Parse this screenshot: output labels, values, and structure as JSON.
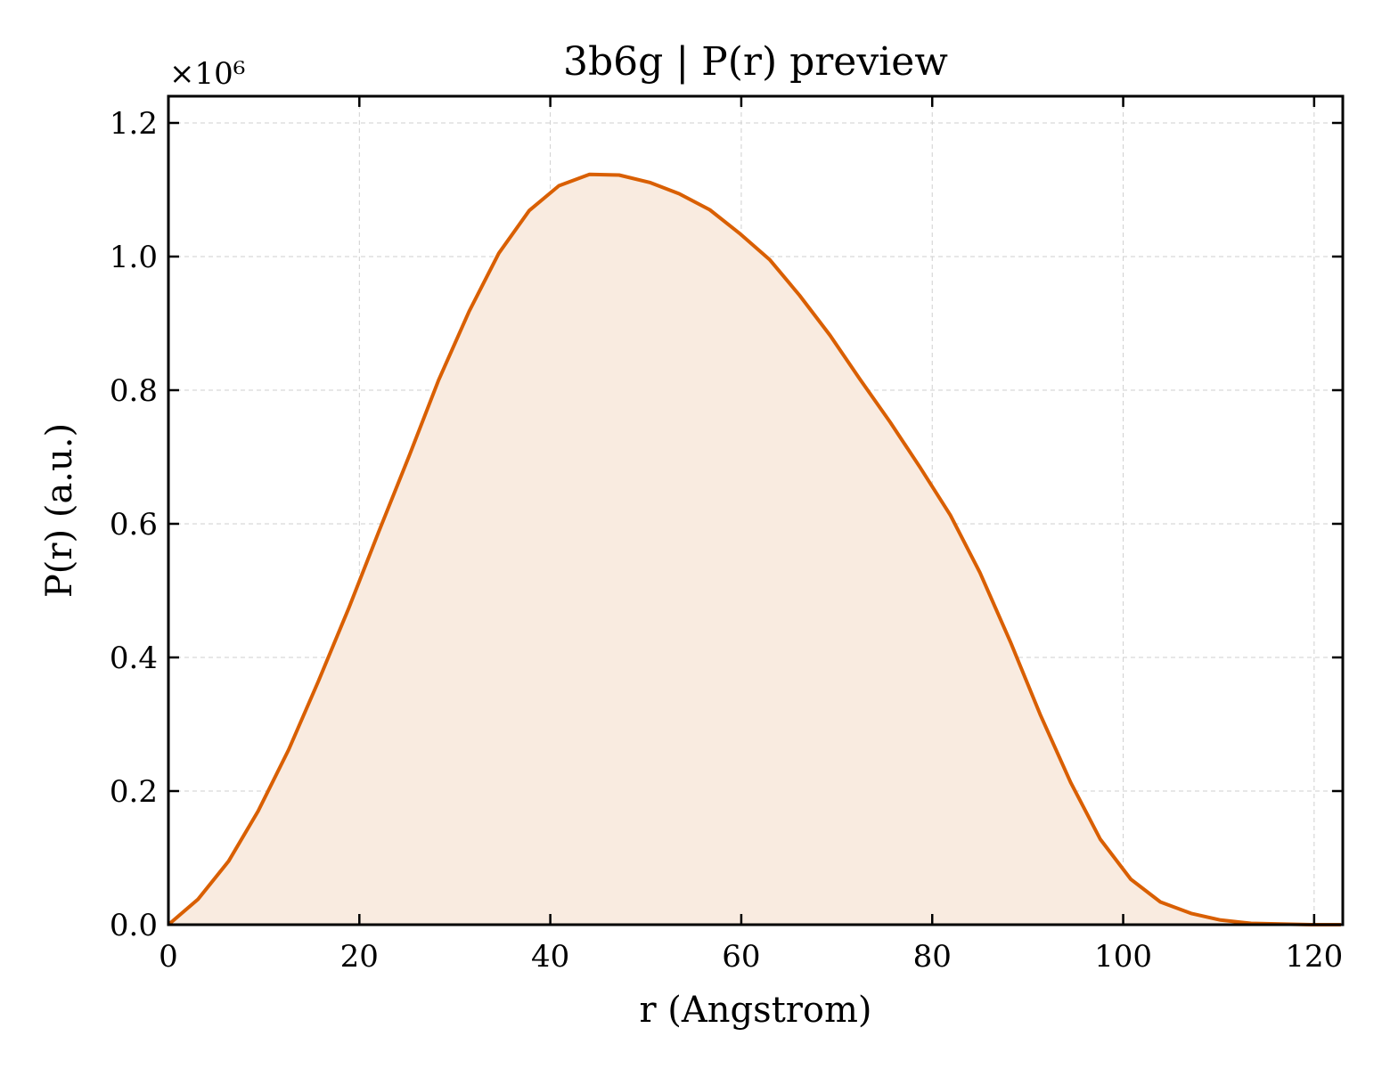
{
  "chart_data": {
    "type": "area",
    "title": "3b6g | P(r) preview",
    "xlabel": "r (Angstrom)",
    "ylabel": "P(r) (a.u.)",
    "y_multiplier": "×10⁶",
    "xlim": [
      0,
      123
    ],
    "ylim": [
      0,
      1.24
    ],
    "x_ticks": [
      0,
      20,
      40,
      60,
      80,
      100,
      120
    ],
    "x_tick_labels": [
      "0",
      "20",
      "40",
      "60",
      "80",
      "100",
      "120"
    ],
    "y_ticks": [
      0,
      0.2,
      0.4,
      0.6,
      0.8,
      1.0,
      1.2
    ],
    "y_tick_labels": [
      "0.0",
      "0.2",
      "0.4",
      "0.6",
      "0.8",
      "1.0",
      "1.2"
    ],
    "grid": true,
    "colors": {
      "line": "#d95f02",
      "fill": "#f9ebe0"
    },
    "series": [
      {
        "x": [
          0,
          3.1,
          6.3,
          9.4,
          12.6,
          15.7,
          18.9,
          22.0,
          25.2,
          28.3,
          31.5,
          34.6,
          37.8,
          40.9,
          44.1,
          47.2,
          50.4,
          53.5,
          56.7,
          59.8,
          63.0,
          66.1,
          69.3,
          72.4,
          75.6,
          78.7,
          81.9,
          85.0,
          88.2,
          91.3,
          94.5,
          97.6,
          100.8,
          103.9,
          107.1,
          110.2,
          113.4,
          116.5,
          119.7,
          122.8
        ],
        "y": [
          0.0,
          0.038,
          0.095,
          0.17,
          0.262,
          0.364,
          0.474,
          0.587,
          0.701,
          0.815,
          0.918,
          1.005,
          1.069,
          1.106,
          1.123,
          1.122,
          1.111,
          1.094,
          1.07,
          1.035,
          0.995,
          0.942,
          0.882,
          0.817,
          0.752,
          0.685,
          0.613,
          0.527,
          0.423,
          0.315,
          0.213,
          0.128,
          0.068,
          0.034,
          0.017,
          0.007,
          0.002,
          0.001,
          0.0,
          0.0
        ]
      }
    ]
  }
}
